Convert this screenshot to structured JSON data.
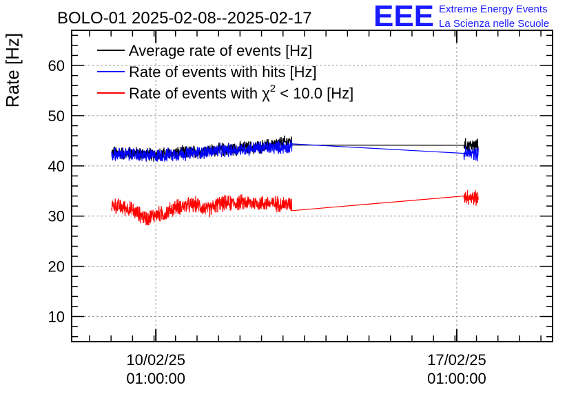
{
  "chart_data": {
    "type": "line",
    "title": "BOLO-01 2025-02-08--2025-02-17",
    "ylabel": "Rate [Hz]",
    "xlabel": "",
    "ylim": [
      5,
      67
    ],
    "xlim": [
      "2025-02-08 02:00",
      "2025-02-19 06:30"
    ],
    "yticks": [
      10,
      20,
      30,
      40,
      50,
      60
    ],
    "xticks": [
      {
        "x": "2025-02-10 01:00",
        "date": "10/02/25",
        "time": "01:00:00"
      },
      {
        "x": "2025-02-17 01:00",
        "date": "17/02/25",
        "time": "01:00:00"
      }
    ],
    "grid": true,
    "legend_position": "top-left",
    "series": [
      {
        "name": "Average rate of events [Hz]",
        "color": "#000000",
        "x": [
          "2025-02-09 00:20",
          "2025-02-09 12:00",
          "2025-02-10 00:00",
          "2025-02-10 12:00",
          "2025-02-11 00:00",
          "2025-02-11 12:00",
          "2025-02-12 00:00",
          "2025-02-12 12:00",
          "2025-02-13 05:00",
          "2025-02-17 05:00",
          "2025-02-17 13:00"
        ],
        "y": [
          42.6,
          42.5,
          42.2,
          42.5,
          42.8,
          43.2,
          43.5,
          43.8,
          44.9,
          44.1,
          44.0
        ]
      },
      {
        "name": "Rate of events with hits [Hz]",
        "color": "#0000ff",
        "x": [
          "2025-02-09 00:20",
          "2025-02-09 12:00",
          "2025-02-10 00:00",
          "2025-02-10 12:00",
          "2025-02-11 00:00",
          "2025-02-11 12:00",
          "2025-02-12 00:00",
          "2025-02-12 12:00",
          "2025-02-13 05:00",
          "2025-02-17 05:00",
          "2025-02-17 13:00"
        ],
        "y": [
          42.3,
          42.3,
          42.0,
          42.3,
          42.6,
          43.0,
          43.3,
          43.6,
          43.8,
          42.5,
          42.4
        ]
      },
      {
        "name": "Rate of events with χ² < 10.0 [Hz]",
        "legend_prefix": "Rate of events with ",
        "legend_chi": "χ",
        "legend_sup": "2",
        "legend_suffix": " < 10.0 [Hz]",
        "color": "#ff0000",
        "x": [
          "2025-02-09 00:20",
          "2025-02-09 10:00",
          "2025-02-09 20:00",
          "2025-02-10 00:00",
          "2025-02-10 06:00",
          "2025-02-10 12:00",
          "2025-02-11 00:00",
          "2025-02-11 06:00",
          "2025-02-11 12:00",
          "2025-02-12 00:00",
          "2025-02-12 12:00",
          "2025-02-13 05:00",
          "2025-02-17 05:00",
          "2025-02-17 13:00"
        ],
        "y": [
          32.2,
          31.5,
          29.5,
          30.2,
          30.5,
          31.8,
          32.3,
          31.2,
          32.4,
          32.7,
          32.6,
          32.3,
          34.0,
          33.5
        ]
      }
    ]
  },
  "logo": {
    "mark": "EEE",
    "line1": "Extreme Energy Events",
    "line2": "La Scienza nelle Scuole",
    "color": "#1a1aff"
  }
}
